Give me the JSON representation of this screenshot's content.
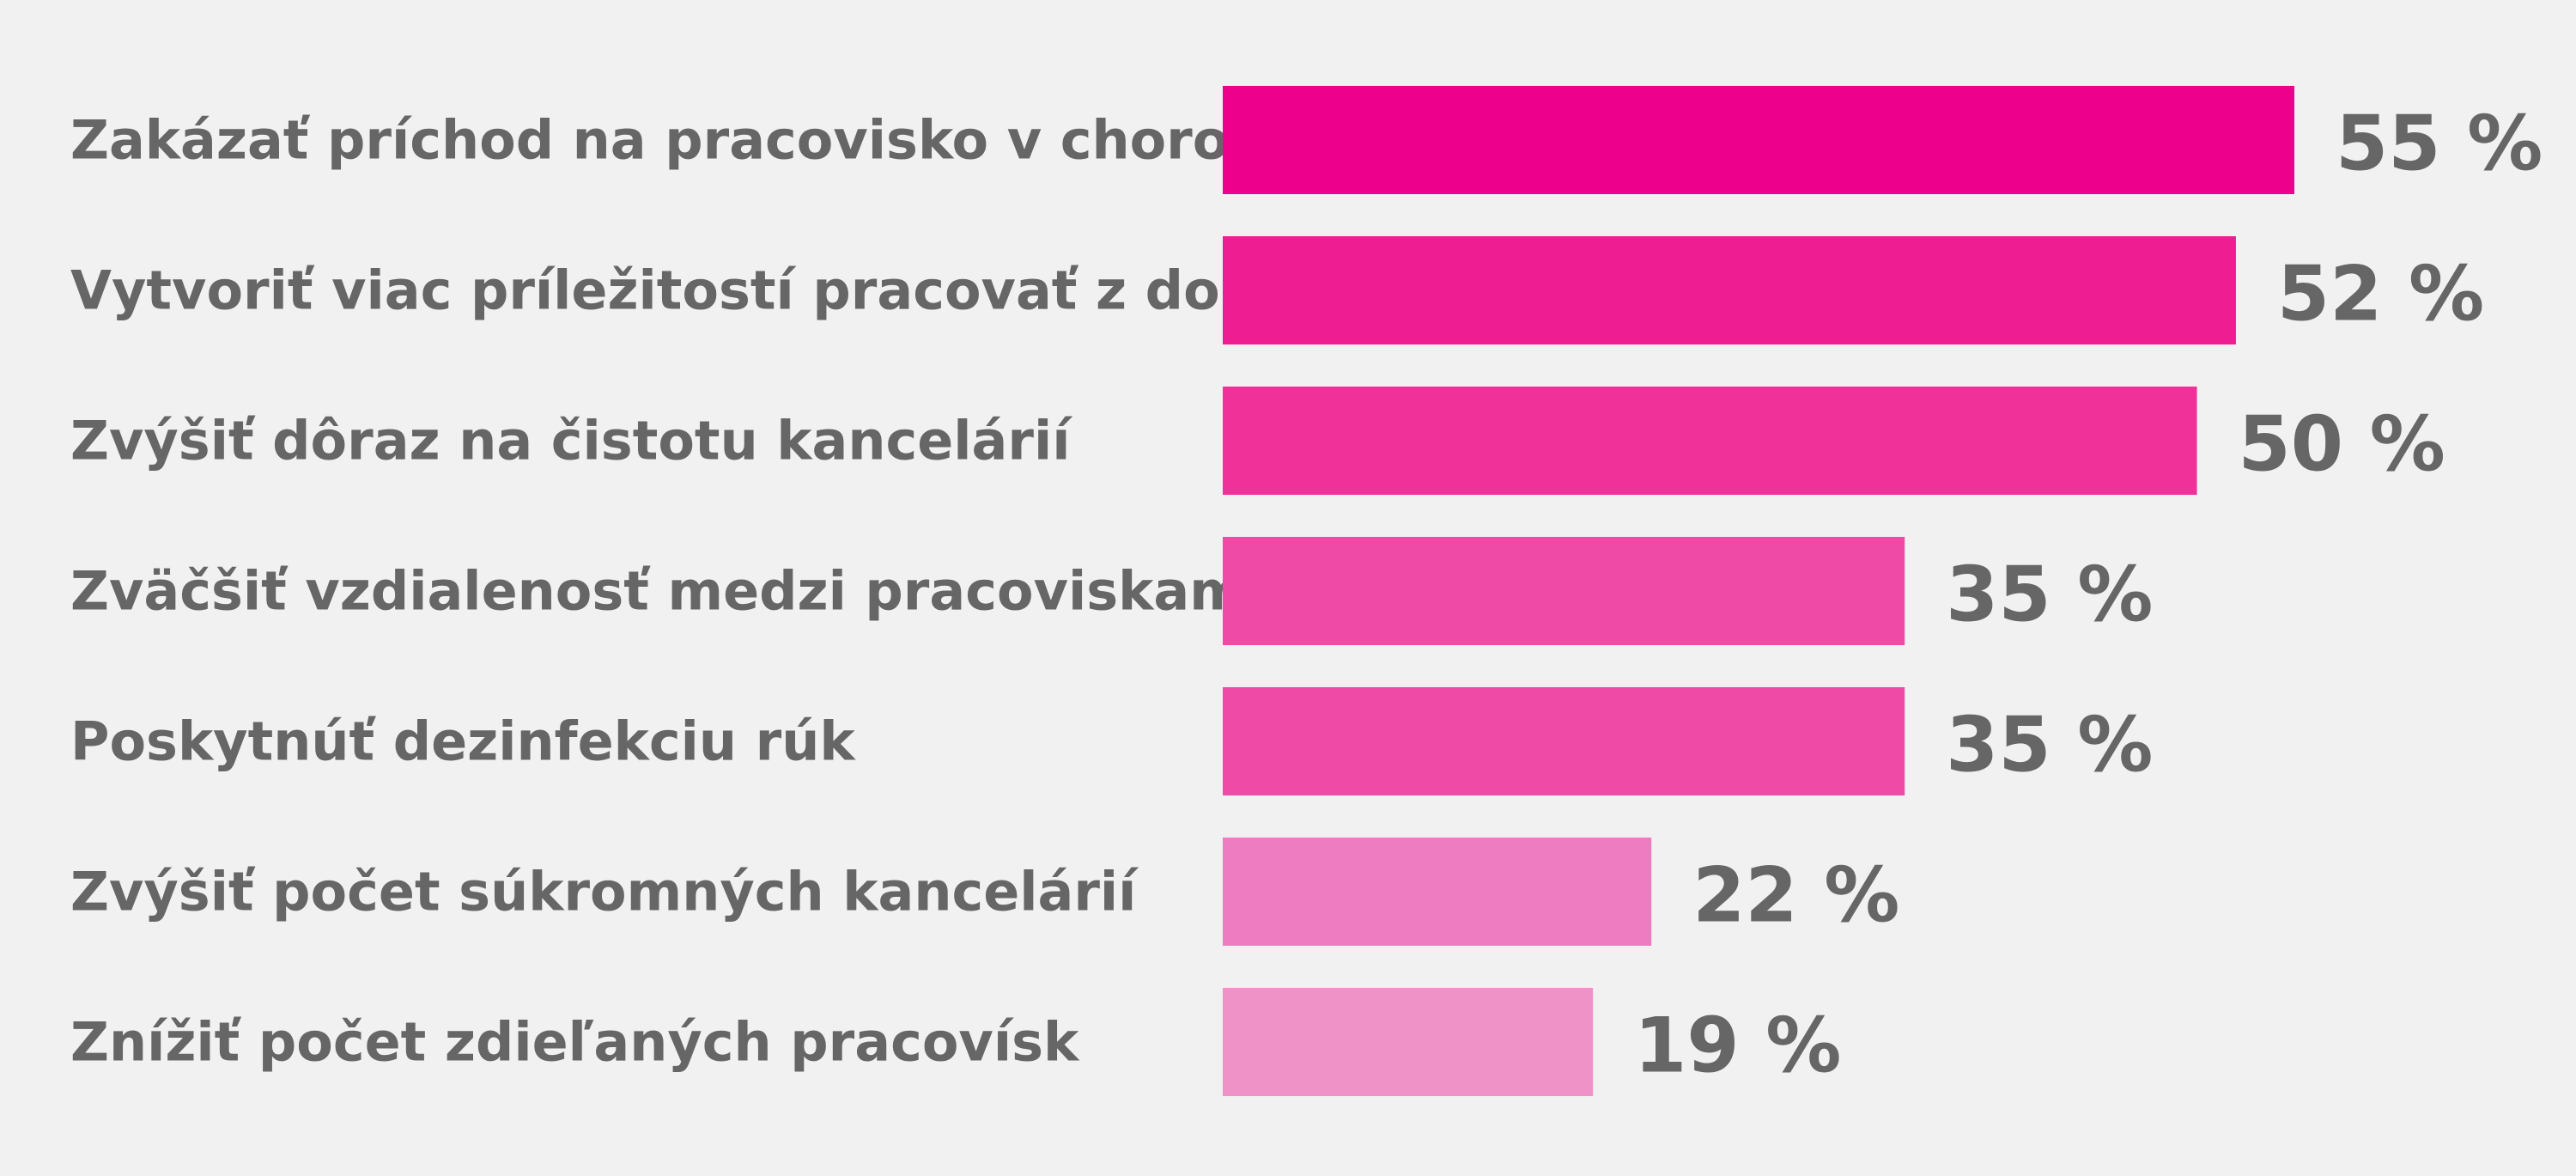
{
  "chart_data": {
    "type": "bar",
    "orientation": "horizontal",
    "categories": [
      "Zakázať príchod na pracovisko v chorobe",
      "Vytvoriť viac príležitostí pracovať z domu",
      "Zvýšiť dôraz na čistotu kancelárií",
      "Zväčšiť vzdialenosť medzi pracoviskami",
      "Poskytnúť dezinfekciu rúk",
      "Zvýšiť počet súkromných kancelárií",
      "Znížiť počet zdieľaných pracovísk"
    ],
    "values": [
      55,
      52,
      50,
      35,
      35,
      22,
      19
    ],
    "value_labels": [
      "55 %",
      "52 %",
      "50 %",
      "35 %",
      "35 %",
      "22 %",
      "19 %"
    ],
    "bar_colors": [
      "#ec008c",
      "#ee1d92",
      "#ef3199",
      "#ef4aa5",
      "#ef4aa5",
      "#ee7cc1",
      "#ee92c8"
    ],
    "grid": false,
    "legend": "none"
  }
}
